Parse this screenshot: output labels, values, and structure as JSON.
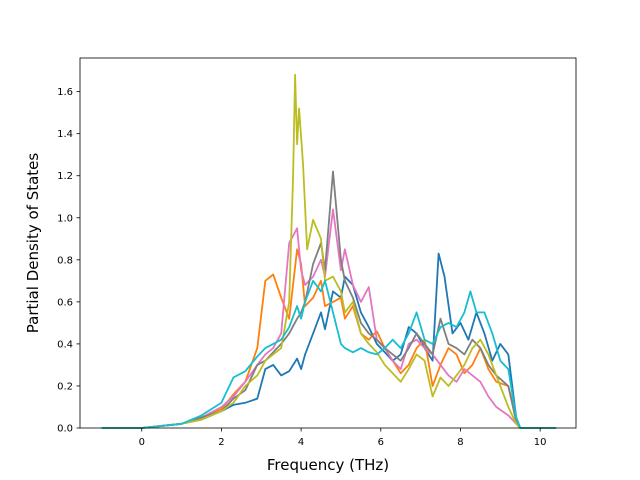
{
  "chart_data": {
    "type": "line",
    "title": "",
    "xlabel": "Frequency (THz)",
    "ylabel": "Partial Density of States",
    "xlim": [
      -1.55,
      10.9
    ],
    "ylim": [
      0,
      1.76
    ],
    "xticks": [
      0,
      2,
      4,
      6,
      8,
      10
    ],
    "xtick_labels": [
      "0",
      "2",
      "4",
      "6",
      "8",
      "10"
    ],
    "yticks": [
      0.0,
      0.2,
      0.4,
      0.6,
      0.8,
      1.0,
      1.2,
      1.4,
      1.6
    ],
    "ytick_labels": [
      "0.0",
      "0.2",
      "0.4",
      "0.6",
      "0.8",
      "1.0",
      "1.2",
      "1.4",
      "1.6"
    ],
    "grid": false,
    "legend": "none",
    "series": [
      {
        "color": "#1f77b4",
        "points": [
          [
            -1.0,
            0
          ],
          [
            0,
            0
          ],
          [
            1,
            0.02
          ],
          [
            1.5,
            0.04
          ],
          [
            2,
            0.08
          ],
          [
            2.3,
            0.11
          ],
          [
            2.6,
            0.12
          ],
          [
            2.9,
            0.14
          ],
          [
            3.1,
            0.28
          ],
          [
            3.3,
            0.3
          ],
          [
            3.5,
            0.25
          ],
          [
            3.7,
            0.27
          ],
          [
            3.9,
            0.33
          ],
          [
            4.0,
            0.28
          ],
          [
            4.1,
            0.35
          ],
          [
            4.3,
            0.45
          ],
          [
            4.5,
            0.55
          ],
          [
            4.6,
            0.47
          ],
          [
            4.8,
            0.65
          ],
          [
            5.0,
            0.62
          ],
          [
            5.1,
            0.72
          ],
          [
            5.3,
            0.68
          ],
          [
            5.5,
            0.55
          ],
          [
            5.7,
            0.48
          ],
          [
            5.9,
            0.4
          ],
          [
            6.1,
            0.36
          ],
          [
            6.3,
            0.32
          ],
          [
            6.5,
            0.35
          ],
          [
            6.7,
            0.48
          ],
          [
            6.9,
            0.45
          ],
          [
            7.1,
            0.38
          ],
          [
            7.3,
            0.32
          ],
          [
            7.45,
            0.83
          ],
          [
            7.6,
            0.72
          ],
          [
            7.8,
            0.45
          ],
          [
            8.0,
            0.5
          ],
          [
            8.2,
            0.42
          ],
          [
            8.4,
            0.55
          ],
          [
            8.6,
            0.45
          ],
          [
            8.8,
            0.32
          ],
          [
            9.0,
            0.4
          ],
          [
            9.2,
            0.35
          ],
          [
            9.4,
            0.05
          ],
          [
            9.5,
            0
          ],
          [
            10.4,
            0
          ]
        ]
      },
      {
        "color": "#ff7f0e",
        "points": [
          [
            -1.0,
            0
          ],
          [
            0,
            0
          ],
          [
            1,
            0.02
          ],
          [
            1.5,
            0.05
          ],
          [
            2,
            0.09
          ],
          [
            2.3,
            0.16
          ],
          [
            2.6,
            0.22
          ],
          [
            2.9,
            0.38
          ],
          [
            3.1,
            0.7
          ],
          [
            3.3,
            0.73
          ],
          [
            3.5,
            0.62
          ],
          [
            3.7,
            0.52
          ],
          [
            3.9,
            0.85
          ],
          [
            4.0,
            0.78
          ],
          [
            4.1,
            0.58
          ],
          [
            4.3,
            0.62
          ],
          [
            4.5,
            0.7
          ],
          [
            4.6,
            0.58
          ],
          [
            4.8,
            0.6
          ],
          [
            5.0,
            0.62
          ],
          [
            5.1,
            0.52
          ],
          [
            5.3,
            0.58
          ],
          [
            5.5,
            0.45
          ],
          [
            5.7,
            0.42
          ],
          [
            5.9,
            0.46
          ],
          [
            6.1,
            0.38
          ],
          [
            6.3,
            0.32
          ],
          [
            6.5,
            0.26
          ],
          [
            6.7,
            0.3
          ],
          [
            6.9,
            0.38
          ],
          [
            7.1,
            0.42
          ],
          [
            7.3,
            0.2
          ],
          [
            7.5,
            0.3
          ],
          [
            7.7,
            0.38
          ],
          [
            7.9,
            0.35
          ],
          [
            8.1,
            0.26
          ],
          [
            8.3,
            0.3
          ],
          [
            8.5,
            0.38
          ],
          [
            8.7,
            0.28
          ],
          [
            8.9,
            0.22
          ],
          [
            9.2,
            0.2
          ],
          [
            9.4,
            0.05
          ],
          [
            9.5,
            0
          ],
          [
            10.4,
            0
          ]
        ]
      },
      {
        "color": "#e377c2",
        "points": [
          [
            -1.0,
            0
          ],
          [
            0,
            0
          ],
          [
            1,
            0.02
          ],
          [
            1.5,
            0.05
          ],
          [
            2,
            0.1
          ],
          [
            2.3,
            0.15
          ],
          [
            2.6,
            0.22
          ],
          [
            2.9,
            0.3
          ],
          [
            3.1,
            0.35
          ],
          [
            3.3,
            0.38
          ],
          [
            3.5,
            0.45
          ],
          [
            3.7,
            0.88
          ],
          [
            3.9,
            0.95
          ],
          [
            4.0,
            0.75
          ],
          [
            4.1,
            0.68
          ],
          [
            4.3,
            0.72
          ],
          [
            4.5,
            0.8
          ],
          [
            4.6,
            0.72
          ],
          [
            4.8,
            1.04
          ],
          [
            5.0,
            0.75
          ],
          [
            5.1,
            0.85
          ],
          [
            5.3,
            0.68
          ],
          [
            5.5,
            0.6
          ],
          [
            5.7,
            0.67
          ],
          [
            5.9,
            0.42
          ],
          [
            6.1,
            0.38
          ],
          [
            6.3,
            0.32
          ],
          [
            6.5,
            0.28
          ],
          [
            6.7,
            0.4
          ],
          [
            6.9,
            0.42
          ],
          [
            7.1,
            0.38
          ],
          [
            7.3,
            0.35
          ],
          [
            7.5,
            0.3
          ],
          [
            7.7,
            0.25
          ],
          [
            7.9,
            0.22
          ],
          [
            8.1,
            0.28
          ],
          [
            8.3,
            0.25
          ],
          [
            8.5,
            0.22
          ],
          [
            8.7,
            0.15
          ],
          [
            8.9,
            0.1
          ],
          [
            9.2,
            0.06
          ],
          [
            9.4,
            0.02
          ],
          [
            9.5,
            0
          ],
          [
            10.4,
            0
          ]
        ]
      },
      {
        "color": "#7f7f7f",
        "points": [
          [
            -1.0,
            0
          ],
          [
            0,
            0
          ],
          [
            1,
            0.02
          ],
          [
            1.5,
            0.05
          ],
          [
            2,
            0.08
          ],
          [
            2.3,
            0.14
          ],
          [
            2.6,
            0.18
          ],
          [
            2.9,
            0.3
          ],
          [
            3.1,
            0.32
          ],
          [
            3.3,
            0.36
          ],
          [
            3.5,
            0.4
          ],
          [
            3.7,
            0.45
          ],
          [
            3.9,
            0.52
          ],
          [
            4.0,
            0.55
          ],
          [
            4.1,
            0.6
          ],
          [
            4.3,
            0.78
          ],
          [
            4.5,
            0.88
          ],
          [
            4.6,
            0.75
          ],
          [
            4.8,
            1.22
          ],
          [
            5.0,
            0.8
          ],
          [
            5.1,
            0.7
          ],
          [
            5.3,
            0.62
          ],
          [
            5.5,
            0.5
          ],
          [
            5.7,
            0.45
          ],
          [
            5.9,
            0.42
          ],
          [
            6.1,
            0.38
          ],
          [
            6.3,
            0.35
          ],
          [
            6.5,
            0.32
          ],
          [
            6.7,
            0.38
          ],
          [
            6.9,
            0.45
          ],
          [
            7.1,
            0.4
          ],
          [
            7.3,
            0.35
          ],
          [
            7.5,
            0.52
          ],
          [
            7.7,
            0.4
          ],
          [
            7.9,
            0.38
          ],
          [
            8.1,
            0.35
          ],
          [
            8.3,
            0.42
          ],
          [
            8.5,
            0.38
          ],
          [
            8.7,
            0.3
          ],
          [
            8.9,
            0.25
          ],
          [
            9.2,
            0.2
          ],
          [
            9.4,
            0.03
          ],
          [
            9.5,
            0
          ],
          [
            10.4,
            0
          ]
        ]
      },
      {
        "color": "#bcbd22",
        "points": [
          [
            -1.0,
            0
          ],
          [
            0,
            0
          ],
          [
            1,
            0.02
          ],
          [
            1.5,
            0.04
          ],
          [
            2,
            0.08
          ],
          [
            2.3,
            0.12
          ],
          [
            2.6,
            0.2
          ],
          [
            2.9,
            0.25
          ],
          [
            3.1,
            0.32
          ],
          [
            3.3,
            0.35
          ],
          [
            3.5,
            0.38
          ],
          [
            3.7,
            0.6
          ],
          [
            3.8,
            1.2
          ],
          [
            3.85,
            1.68
          ],
          [
            3.9,
            1.35
          ],
          [
            3.95,
            1.52
          ],
          [
            4.05,
            1.25
          ],
          [
            4.15,
            0.85
          ],
          [
            4.3,
            0.99
          ],
          [
            4.5,
            0.9
          ],
          [
            4.6,
            0.7
          ],
          [
            4.8,
            0.72
          ],
          [
            5.0,
            0.65
          ],
          [
            5.1,
            0.55
          ],
          [
            5.3,
            0.6
          ],
          [
            5.5,
            0.45
          ],
          [
            5.7,
            0.4
          ],
          [
            5.9,
            0.36
          ],
          [
            6.1,
            0.3
          ],
          [
            6.3,
            0.26
          ],
          [
            6.5,
            0.22
          ],
          [
            6.7,
            0.28
          ],
          [
            6.9,
            0.35
          ],
          [
            7.1,
            0.32
          ],
          [
            7.3,
            0.15
          ],
          [
            7.5,
            0.24
          ],
          [
            7.7,
            0.2
          ],
          [
            7.9,
            0.25
          ],
          [
            8.1,
            0.3
          ],
          [
            8.3,
            0.38
          ],
          [
            8.5,
            0.42
          ],
          [
            8.7,
            0.35
          ],
          [
            8.9,
            0.25
          ],
          [
            9.2,
            0.1
          ],
          [
            9.4,
            0.02
          ],
          [
            9.5,
            0
          ],
          [
            10.4,
            0
          ]
        ]
      },
      {
        "color": "#17becf",
        "points": [
          [
            -1.0,
            0
          ],
          [
            0,
            0
          ],
          [
            1,
            0.02
          ],
          [
            1.5,
            0.06
          ],
          [
            2,
            0.12
          ],
          [
            2.3,
            0.24
          ],
          [
            2.6,
            0.27
          ],
          [
            2.9,
            0.34
          ],
          [
            3.1,
            0.38
          ],
          [
            3.3,
            0.4
          ],
          [
            3.5,
            0.42
          ],
          [
            3.7,
            0.48
          ],
          [
            3.9,
            0.58
          ],
          [
            4.0,
            0.52
          ],
          [
            4.1,
            0.6
          ],
          [
            4.3,
            0.7
          ],
          [
            4.5,
            0.65
          ],
          [
            4.6,
            0.7
          ],
          [
            4.8,
            0.55
          ],
          [
            5.0,
            0.4
          ],
          [
            5.1,
            0.38
          ],
          [
            5.3,
            0.36
          ],
          [
            5.5,
            0.38
          ],
          [
            5.7,
            0.36
          ],
          [
            5.9,
            0.35
          ],
          [
            6.1,
            0.38
          ],
          [
            6.3,
            0.42
          ],
          [
            6.5,
            0.38
          ],
          [
            6.7,
            0.45
          ],
          [
            6.9,
            0.55
          ],
          [
            7.1,
            0.42
          ],
          [
            7.3,
            0.4
          ],
          [
            7.5,
            0.48
          ],
          [
            7.7,
            0.5
          ],
          [
            7.9,
            0.48
          ],
          [
            8.1,
            0.55
          ],
          [
            8.25,
            0.65
          ],
          [
            8.4,
            0.55
          ],
          [
            8.6,
            0.55
          ],
          [
            8.8,
            0.45
          ],
          [
            9.0,
            0.32
          ],
          [
            9.2,
            0.28
          ],
          [
            9.4,
            0.05
          ],
          [
            9.5,
            0
          ],
          [
            10.4,
            0
          ]
        ]
      }
    ]
  }
}
